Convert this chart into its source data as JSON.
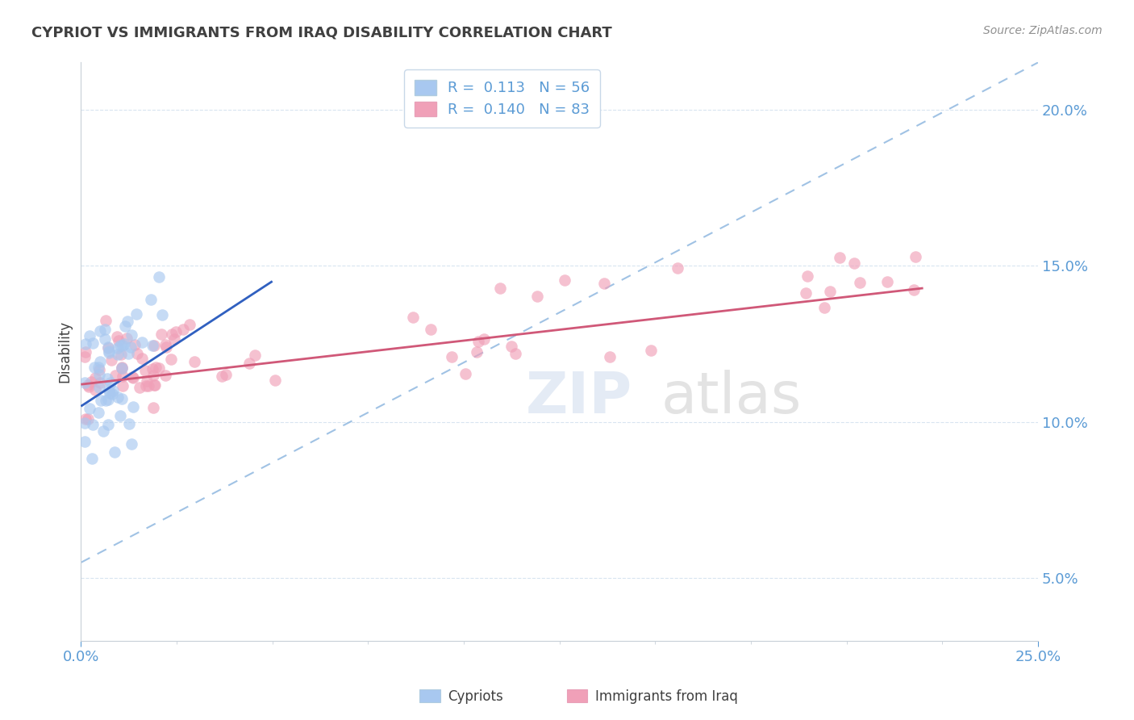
{
  "title": "CYPRIOT VS IMMIGRANTS FROM IRAQ DISABILITY CORRELATION CHART",
  "source": "Source: ZipAtlas.com",
  "ylabel": "Disability",
  "xlim": [
    0.0,
    0.25
  ],
  "ylim": [
    0.03,
    0.215
  ],
  "background_color": "#ffffff",
  "cypriot_color": "#a8c8f0",
  "iraq_color": "#f0a0b8",
  "cypriot_line_color": "#3060c0",
  "iraq_line_color": "#d05878",
  "dashed_line_color": "#90b8e0",
  "legend_R_cypriot": "0.113",
  "legend_N_cypriot": "56",
  "legend_R_iraq": "0.140",
  "legend_N_iraq": "83",
  "text_color": "#5b9bd5",
  "grid_color": "#d8e4f0",
  "spine_color": "#c8d0d8",
  "title_color": "#404040",
  "label_color": "#404040",
  "yticks": [
    0.05,
    0.1,
    0.15,
    0.2
  ],
  "xticks": [
    0.0,
    0.25
  ]
}
